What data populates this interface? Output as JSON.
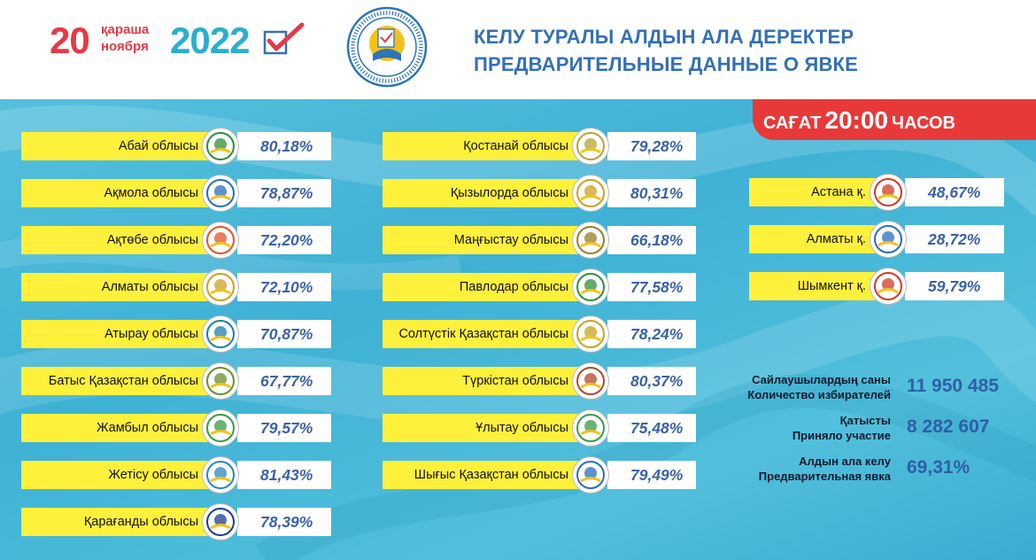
{
  "header": {
    "day": "20",
    "month_kz": "қараша",
    "month_ru": "ноября",
    "year": "2022",
    "title_kz": "КЕЛУ ТУРАЛЫ АЛДЫН АЛА ДЕРЕКТЕР",
    "title_ru": "ПРЕДВАРИТЕЛЬНЫЕ ДАННЫЕ О ЯВКЕ",
    "emblem_icon": "election-commission-emblem-icon",
    "check_icon": "ballot-check-icon"
  },
  "time_badge": {
    "prefix": "САҒАТ",
    "time": "20:00",
    "suffix": "ЧАСОВ"
  },
  "colors": {
    "red": "#e63946",
    "teal": "#2ab0cc",
    "blue": "#3470b2",
    "label_yellow": "#fff03c",
    "value_blue": "#3b62a6"
  },
  "regions_left": [
    {
      "name": "Абай облысы",
      "value": "80,18%",
      "icon": "abai-region-logo-icon"
    },
    {
      "name": "Ақмола облысы",
      "value": "78,87%",
      "icon": "akmola-region-logo-icon"
    },
    {
      "name": "Ақтөбе облысы",
      "value": "72,20%",
      "icon": "aktobe-region-logo-icon"
    },
    {
      "name": "Алматы облысы",
      "value": "72,10%",
      "icon": "almaty-region-logo-icon"
    },
    {
      "name": "Атырау облысы",
      "value": "70,87%",
      "icon": "atyrau-region-logo-icon"
    },
    {
      "name": "Батыс Қазақстан облысы",
      "value": "67,77%",
      "icon": "west-kazakhstan-logo-icon"
    },
    {
      "name": "Жамбыл облысы",
      "value": "79,57%",
      "icon": "zhambyl-region-logo-icon"
    },
    {
      "name": "Жетісу облысы",
      "value": "81,43%",
      "icon": "zhetysu-region-logo-icon"
    },
    {
      "name": "Қарағанды облысы",
      "value": "78,39%",
      "icon": "karaganda-region-logo-icon"
    }
  ],
  "regions_mid": [
    {
      "name": "Қостанай облысы",
      "value": "79,28%",
      "icon": "kostanay-region-logo-icon"
    },
    {
      "name": "Қызылорда облысы",
      "value": "80,31%",
      "icon": "kyzylorda-region-logo-icon"
    },
    {
      "name": "Маңғыстау облысы",
      "value": "66,18%",
      "icon": "mangystau-region-logo-icon"
    },
    {
      "name": "Павлодар облысы",
      "value": "77,58%",
      "icon": "pavlodar-region-logo-icon"
    },
    {
      "name": "Солтүстік Қазақстан облысы",
      "value": "78,24%",
      "icon": "north-kazakhstan-logo-icon"
    },
    {
      "name": "Түркістан облысы",
      "value": "80,37%",
      "icon": "turkistan-region-logo-icon"
    },
    {
      "name": "Ұлытау облысы",
      "value": "75,48%",
      "icon": "ulytau-region-logo-icon"
    },
    {
      "name": "Шығыс Қазақстан облысы",
      "value": "79,49%",
      "icon": "east-kazakhstan-logo-icon"
    }
  ],
  "cities": [
    {
      "name": "Астана қ.",
      "value": "48,67%",
      "icon": "astana-city-logo-icon"
    },
    {
      "name": "Алматы қ.",
      "value": "28,72%",
      "icon": "almaty-city-logo-icon"
    },
    {
      "name": "Шымкент қ.",
      "value": "59,79%",
      "icon": "shymkent-city-logo-icon"
    }
  ],
  "stats": {
    "voters_label_kz": "Сайлаушылардың саны",
    "voters_label_ru": "Количество избирателей",
    "voters_value": "11 950 485",
    "participated_label_kz": "Қатысты",
    "participated_label_ru": "Приняло участие",
    "participated_value": "8 282 607",
    "turnout_label_kz": "Алдын ала келу",
    "turnout_label_ru": "Предварительная явка",
    "turnout_value": "69,31%"
  }
}
